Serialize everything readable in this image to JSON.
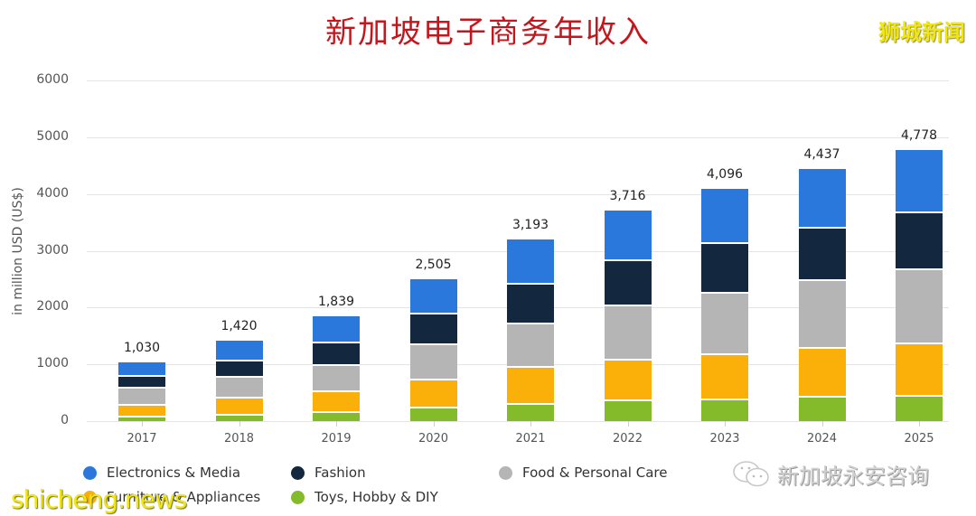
{
  "header": {
    "title": "新加坡电子商务年收入",
    "brand_watermark": "狮城新闻"
  },
  "watermarks": {
    "bottom_left": "shicheng.news",
    "bottom_right": "新加坡永安咨询",
    "bottom_right_icon": "wechat-icon"
  },
  "colors": {
    "electronics_media": "#2b78dc",
    "fashion": "#13273f",
    "food_personal_care": "#b5b5b5",
    "furniture_appliances": "#fbb009",
    "toys_hobby_diy": "#84bb2b",
    "title": "#c4161c"
  },
  "axis": {
    "y_title": "in million USD (US$)",
    "y_ticks": [
      "6000",
      "5000",
      "4000",
      "3000",
      "2000",
      "1000",
      "0"
    ]
  },
  "legend": [
    {
      "label": "Electronics & Media",
      "color": "#2b78dc"
    },
    {
      "label": "Fashion",
      "color": "#13273f"
    },
    {
      "label": "Food & Personal Care",
      "color": "#b5b5b5"
    },
    {
      "label": "Furniture & Appliances",
      "color": "#fbb009"
    },
    {
      "label": "Toys, Hobby & DIY",
      "color": "#84bb2b"
    }
  ],
  "chart_data": {
    "type": "bar",
    "stacked": true,
    "title": "新加坡电子商务年收入",
    "xlabel": "",
    "ylabel": "in million USD (US$)",
    "ylim": [
      0,
      6000
    ],
    "grid": true,
    "legend_position": "bottom",
    "categories": [
      "2017",
      "2018",
      "2019",
      "2020",
      "2021",
      "2022",
      "2023",
      "2024",
      "2025"
    ],
    "totals": [
      1030,
      1420,
      1839,
      2505,
      3193,
      3716,
      4096,
      4437,
      4778
    ],
    "total_labels": [
      "1,030",
      "1,420",
      "1,839",
      "2,505",
      "3,193",
      "3,716",
      "4,096",
      "4,437",
      "4,778"
    ],
    "series": [
      {
        "name": "Toys, Hobby & DIY",
        "values": [
          96,
          132,
          175,
          255,
          318,
          377,
          398,
          441,
          462
        ]
      },
      {
        "name": "Furniture & Appliances",
        "values": [
          202,
          293,
          371,
          494,
          658,
          726,
          801,
          860,
          924
        ]
      },
      {
        "name": "Food & Personal Care",
        "values": [
          303,
          376,
          452,
          621,
          755,
          955,
          1073,
          1194,
          1311
        ]
      },
      {
        "name": "Fashion",
        "values": [
          207,
          287,
          398,
          541,
          701,
          791,
          876,
          934,
          993
        ]
      },
      {
        "name": "Electronics & Media",
        "values": [
          222,
          332,
          443,
          594,
          761,
          867,
          948,
          1008,
          1088
        ]
      }
    ]
  }
}
